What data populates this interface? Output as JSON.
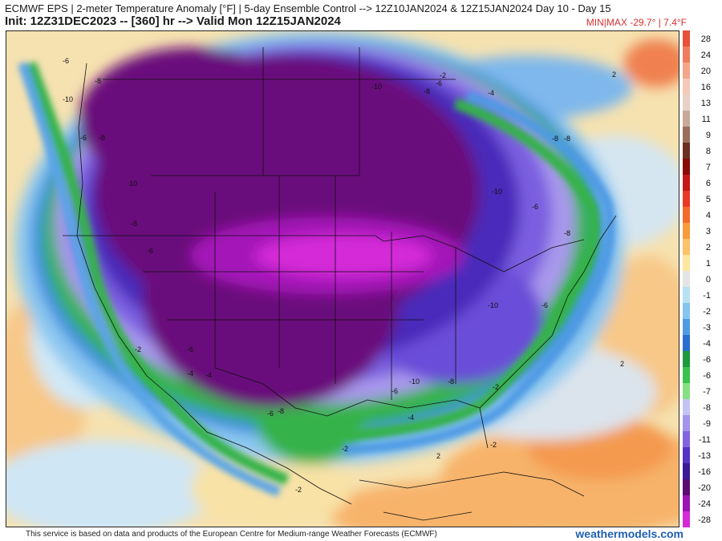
{
  "header": {
    "line1": "ECMWF EPS | 2-meter Temperature Anomaly [°F] | 5-day Ensemble Control --> 12Z10JAN2024 & 12Z15JAN2024   Day 10 - Day 15",
    "line2": "Init: 12Z31DEC2023 -- [360] hr --> Valid Mon 12Z15JAN2024",
    "minmax": "MIN|MAX -29.7° | 7.4°F"
  },
  "colorbar": {
    "labels": [
      "28",
      "24",
      "20",
      "16",
      "13",
      "11",
      "9",
      "8",
      "7",
      "6",
      "5",
      "4",
      "3",
      "2",
      "1",
      "0",
      "-1",
      "-2",
      "-3",
      "-4",
      "-6",
      "-6",
      "-7",
      "-8",
      "-9",
      "-11",
      "-13",
      "-16",
      "-20",
      "-24",
      "-28"
    ],
    "colors": [
      "#e8503a",
      "#f07c60",
      "#f4a58a",
      "#f5c9b7",
      "#e8d0c8",
      "#c8a898",
      "#9a6e5a",
      "#6a3020",
      "#8a0a0a",
      "#c41818",
      "#e83828",
      "#f46a2a",
      "#f89b3c",
      "#fbc26a",
      "#fde6a0",
      "#e4e4e4",
      "#b8e0f4",
      "#84c6f0",
      "#4e9ae4",
      "#2a6ed0",
      "#1e9a3c",
      "#3cc04e",
      "#84e080",
      "#c4c4f4",
      "#a494ec",
      "#8264e0",
      "#5434c4",
      "#3a1a98",
      "#5a0a70",
      "#9a14b4",
      "#d42ad8"
    ]
  },
  "map_labels": [
    {
      "text": "-6"
    },
    {
      "text": "-8"
    },
    {
      "text": "-10"
    },
    {
      "text": "-6"
    },
    {
      "text": "-8"
    },
    {
      "text": "-10"
    },
    {
      "text": "-8"
    },
    {
      "text": "-6"
    },
    {
      "text": "-10"
    },
    {
      "text": "-8"
    },
    {
      "text": "-6"
    },
    {
      "text": "-2"
    },
    {
      "text": "-4"
    },
    {
      "text": "-8"
    },
    {
      "text": "-10"
    },
    {
      "text": "-6"
    },
    {
      "text": "-8"
    },
    {
      "text": "-10"
    },
    {
      "text": "-6"
    },
    {
      "text": "-10"
    },
    {
      "text": "-8"
    },
    {
      "text": "-6"
    },
    {
      "text": "-4"
    },
    {
      "text": "-2"
    },
    {
      "text": "-4"
    },
    {
      "text": "-6"
    },
    {
      "text": "-8"
    },
    {
      "text": "-2"
    },
    {
      "text": "-2"
    },
    {
      "text": "2"
    },
    {
      "text": "2"
    },
    {
      "text": "-2"
    },
    {
      "text": "2"
    },
    {
      "text": "-8"
    },
    {
      "text": "-6"
    },
    {
      "text": "-4"
    },
    {
      "text": "-2"
    }
  ],
  "footer": {
    "notice": "This service is based on data and products of the European Centre for Medium-range Weather Forecasts (ECMWF)",
    "site": "weathermodels.com"
  }
}
